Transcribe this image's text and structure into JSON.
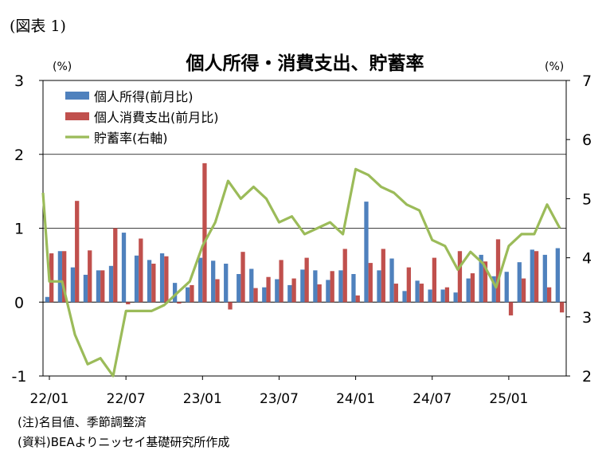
{
  "figure_label": "(図表 1)",
  "notes": {
    "note1": "(注)名目値、季節調整済",
    "note2": "(資料)BEAよりニッセイ基礎研究所作成"
  },
  "colors": {
    "income": "#4F81BD",
    "spending": "#C0504D",
    "saving": "#9BBB59",
    "axis": "#000000",
    "grid": "#000000"
  },
  "chart_data": {
    "type": "bar",
    "title": "個人所得・消費支出、貯蓄率",
    "left_unit": "(%)",
    "right_unit": "(%)",
    "y_left": {
      "min": -1,
      "max": 3,
      "ticks": [
        "3",
        "2",
        "1",
        "0",
        "-1"
      ]
    },
    "y_right": {
      "min": 2,
      "max": 7,
      "ticks": [
        "7",
        "6",
        "5",
        "4",
        "3",
        "2"
      ]
    },
    "x_tick_labels": [
      "22/01",
      "22/07",
      "23/01",
      "23/07",
      "24/01",
      "24/07",
      "25/01"
    ],
    "grid": "horizontal at 1 and 2",
    "legend_position": "top-left",
    "months": [
      "22/01",
      "22/02",
      "22/03",
      "22/04",
      "22/05",
      "22/06",
      "22/07",
      "22/08",
      "22/09",
      "22/10",
      "22/11",
      "22/12",
      "23/01",
      "23/02",
      "23/03",
      "23/04",
      "23/05",
      "23/06",
      "23/07",
      "23/08",
      "23/09",
      "23/10",
      "23/11",
      "23/12",
      "24/01",
      "24/02",
      "24/03",
      "24/04",
      "24/05",
      "24/06",
      "24/07",
      "24/08",
      "24/09",
      "24/10",
      "24/11",
      "24/12",
      "25/01",
      "25/02",
      "25/03",
      "25/04",
      "25/05"
    ],
    "series": [
      {
        "name": "個人所得(前月比)",
        "type": "bar",
        "axis": "left",
        "values": [
          0.07,
          0.69,
          0.47,
          0.37,
          0.43,
          0.49,
          0.94,
          0.63,
          0.57,
          0.66,
          0.26,
          0.2,
          0.6,
          0.56,
          0.52,
          0.38,
          0.45,
          0.2,
          0.31,
          0.23,
          0.44,
          0.43,
          0.3,
          0.43,
          0.38,
          1.36,
          0.43,
          0.59,
          0.15,
          0.29,
          0.17,
          0.17,
          0.13,
          0.32,
          0.64,
          0.35,
          0.41,
          0.54,
          0.71,
          0.64,
          0.73
        ]
      },
      {
        "name": "個人消費支出(前月比)",
        "type": "bar",
        "axis": "left",
        "values": [
          0.66,
          0.69,
          1.37,
          0.7,
          0.43,
          1.0,
          -0.03,
          0.86,
          0.52,
          0.62,
          -0.02,
          0.23,
          1.88,
          0.31,
          -0.1,
          0.68,
          0.19,
          0.34,
          0.57,
          0.32,
          0.6,
          0.24,
          0.42,
          0.72,
          0.09,
          0.53,
          0.72,
          0.25,
          0.47,
          0.25,
          0.6,
          0.2,
          0.69,
          0.39,
          0.55,
          0.85,
          -0.18,
          0.32,
          0.69,
          0.2,
          -0.14
        ]
      },
      {
        "name": "貯蓄率(右軸)",
        "type": "line",
        "axis": "right",
        "x_offsets": [
          -0.5,
          0,
          1,
          2,
          3,
          4,
          5,
          6,
          7,
          8,
          9,
          10,
          11,
          12,
          13,
          14,
          15,
          16,
          17,
          18,
          19,
          20,
          21,
          22,
          23,
          24,
          25,
          26,
          27,
          28,
          29,
          30,
          31,
          32,
          33,
          34,
          35,
          36,
          37,
          38,
          39,
          40
        ],
        "values": [
          5.1,
          3.6,
          3.6,
          2.7,
          2.2,
          2.3,
          2.0,
          3.1,
          3.1,
          3.1,
          3.2,
          3.4,
          3.6,
          4.2,
          4.6,
          5.3,
          5.0,
          5.2,
          5.0,
          4.6,
          4.7,
          4.4,
          4.5,
          4.6,
          4.4,
          5.5,
          5.4,
          5.2,
          5.1,
          4.9,
          4.8,
          4.3,
          4.2,
          3.8,
          4.1,
          3.9,
          3.5,
          4.2,
          4.4,
          4.4,
          4.9,
          4.5
        ]
      }
    ]
  }
}
